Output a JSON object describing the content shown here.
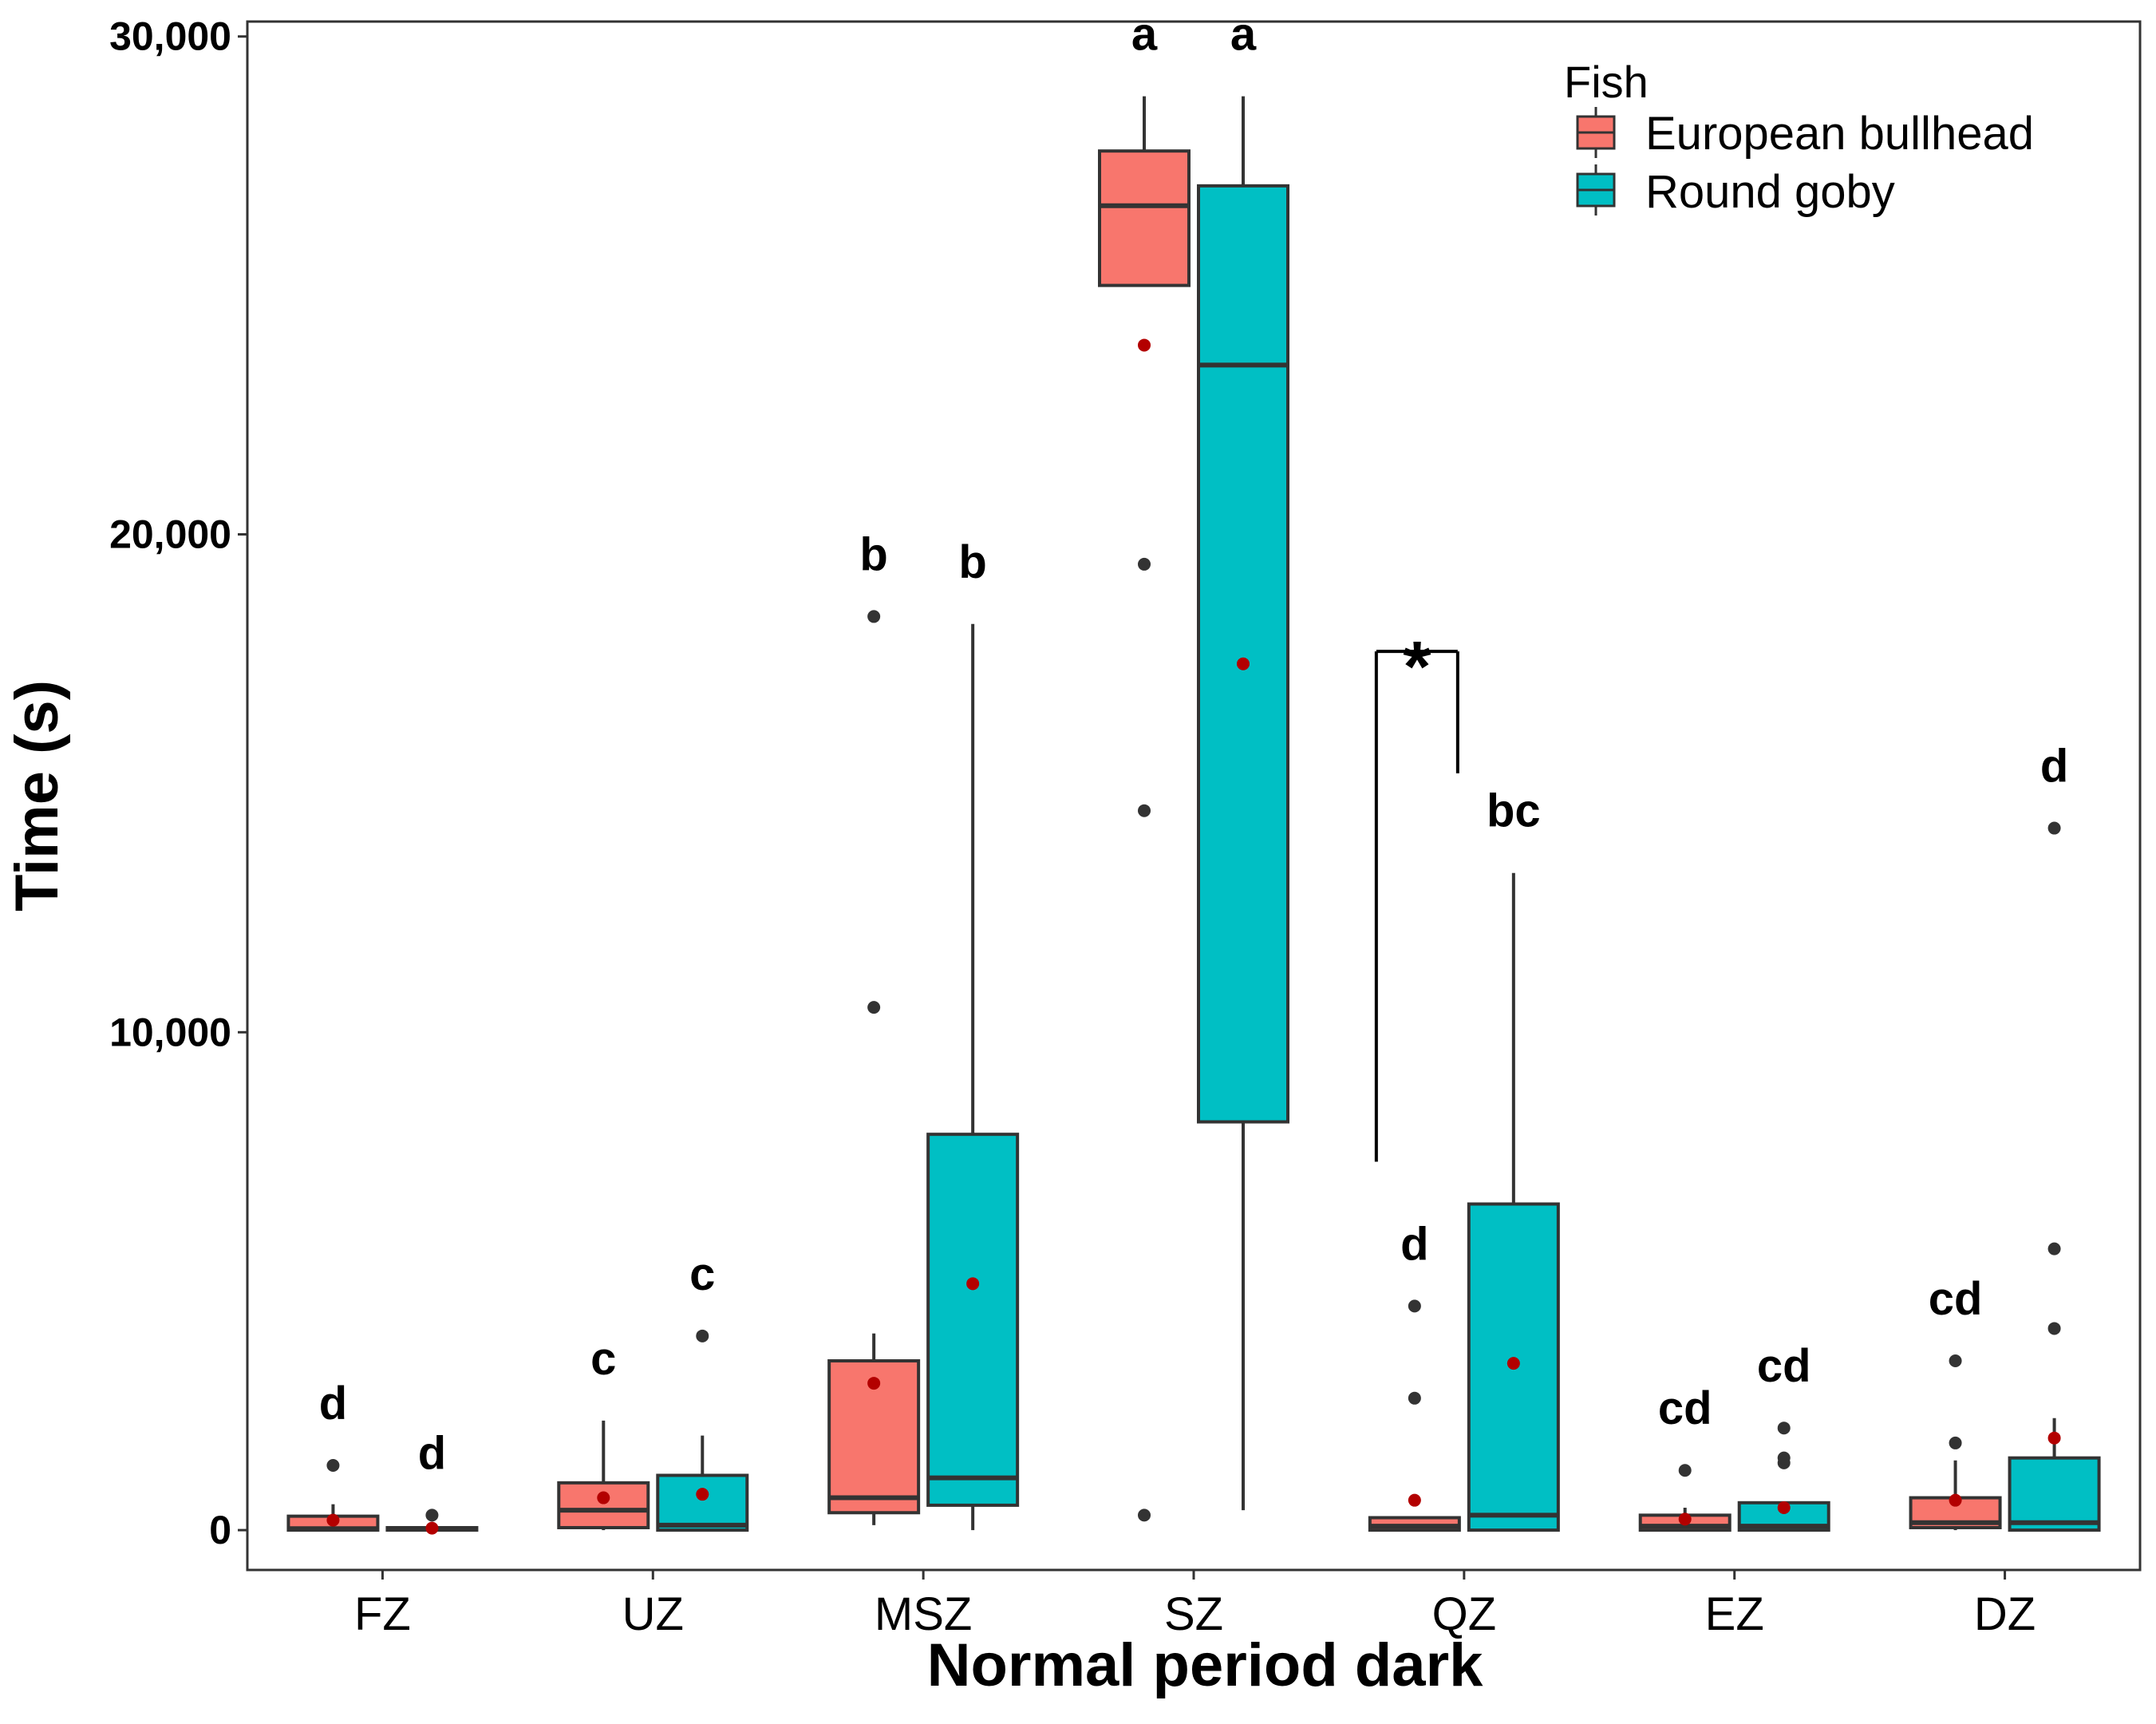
{
  "chart_data": {
    "type": "box",
    "xlabel": "Normal period dark",
    "ylabel": "Time (s)",
    "ylim": [
      -800,
      30300
    ],
    "yticks": [
      0,
      10000,
      20000,
      30000
    ],
    "ytick_labels": [
      "0",
      "10,000",
      "20,000",
      "30,000"
    ],
    "categories": [
      "FZ",
      "UZ",
      "MSZ",
      "SZ",
      "QZ",
      "EZ",
      "DZ"
    ],
    "legend": {
      "title": "Fish",
      "position": "top-right",
      "entries": [
        {
          "name": "European bullhead",
          "color": "#F8766D"
        },
        {
          "name": "Round goby",
          "color": "#00BFC4"
        }
      ]
    },
    "series": [
      {
        "name": "European bullhead",
        "color": "#F8766D",
        "boxes": [
          {
            "category": "FZ",
            "q1": 0,
            "median": 30,
            "q3": 280,
            "whisker_low": 0,
            "whisker_high": 520,
            "mean": 200,
            "outliers": [
              1300
            ],
            "letter": "d"
          },
          {
            "category": "UZ",
            "q1": 50,
            "median": 400,
            "q3": 950,
            "whisker_low": 0,
            "whisker_high": 2200,
            "mean": 650,
            "outliers": [],
            "letter": "c"
          },
          {
            "category": "MSZ",
            "q1": 350,
            "median": 650,
            "q3": 3400,
            "whisker_low": 100,
            "whisker_high": 3950,
            "mean": 2950,
            "outliers": [
              10500,
              18350
            ],
            "letter": "b"
          },
          {
            "category": "SZ",
            "q1": 25000,
            "median": 26600,
            "q3": 27700,
            "whisker_low": 25000,
            "whisker_high": 28800,
            "mean": 23800,
            "outliers": [
              19400,
              14450,
              300
            ],
            "letter": "a"
          },
          {
            "category": "QZ",
            "q1": 0,
            "median": 80,
            "q3": 250,
            "whisker_low": 0,
            "whisker_high": 250,
            "mean": 600,
            "outliers": [
              4500,
              2650
            ],
            "letter": "d"
          },
          {
            "category": "EZ",
            "q1": 0,
            "median": 80,
            "q3": 300,
            "whisker_low": 0,
            "whisker_high": 450,
            "mean": 220,
            "outliers": [
              1200
            ],
            "letter": "cd"
          },
          {
            "category": "DZ",
            "q1": 50,
            "median": 150,
            "q3": 650,
            "whisker_low": 0,
            "whisker_high": 1400,
            "mean": 600,
            "outliers": [
              3400,
              1750
            ],
            "letter": "cd"
          }
        ]
      },
      {
        "name": "Round goby",
        "color": "#00BFC4",
        "boxes": [
          {
            "category": "FZ",
            "q1": 0,
            "median": 20,
            "q3": 50,
            "whisker_low": 0,
            "whisker_high": 80,
            "mean": 40,
            "outliers": [
              300
            ],
            "letter": "d"
          },
          {
            "category": "UZ",
            "q1": 0,
            "median": 100,
            "q3": 1100,
            "whisker_low": 0,
            "whisker_high": 1900,
            "mean": 720,
            "outliers": [
              3900
            ],
            "letter": "c"
          },
          {
            "category": "MSZ",
            "q1": 500,
            "median": 1050,
            "q3": 7950,
            "whisker_low": 0,
            "whisker_high": 18200,
            "mean": 4950,
            "outliers": [],
            "letter": "b"
          },
          {
            "category": "SZ",
            "q1": 8200,
            "median": 23400,
            "q3": 27000,
            "whisker_low": 400,
            "whisker_high": 28800,
            "mean": 17400,
            "outliers": [],
            "letter": "a"
          },
          {
            "category": "QZ",
            "q1": 0,
            "median": 300,
            "q3": 6550,
            "whisker_low": 0,
            "whisker_high": 13200,
            "mean": 3350,
            "outliers": [],
            "letter": "bc"
          },
          {
            "category": "EZ",
            "q1": 0,
            "median": 80,
            "q3": 550,
            "whisker_low": 0,
            "whisker_high": 550,
            "mean": 450,
            "outliers": [
              1350,
              1450,
              2050
            ],
            "letter": "cd"
          },
          {
            "category": "DZ",
            "q1": 0,
            "median": 150,
            "q3": 1450,
            "whisker_low": 0,
            "whisker_high": 2250,
            "mean": 1850,
            "outliers": [
              14100,
              5650,
              4050
            ],
            "letter": "d"
          }
        ]
      }
    ],
    "significance": {
      "category": "QZ",
      "symbol": "*",
      "bracket_top": 17650,
      "left_end": 7400,
      "right_end": 15200
    },
    "colors": {
      "mean_point": "#B30000",
      "outlier": "#333333",
      "line": "#333333"
    }
  }
}
